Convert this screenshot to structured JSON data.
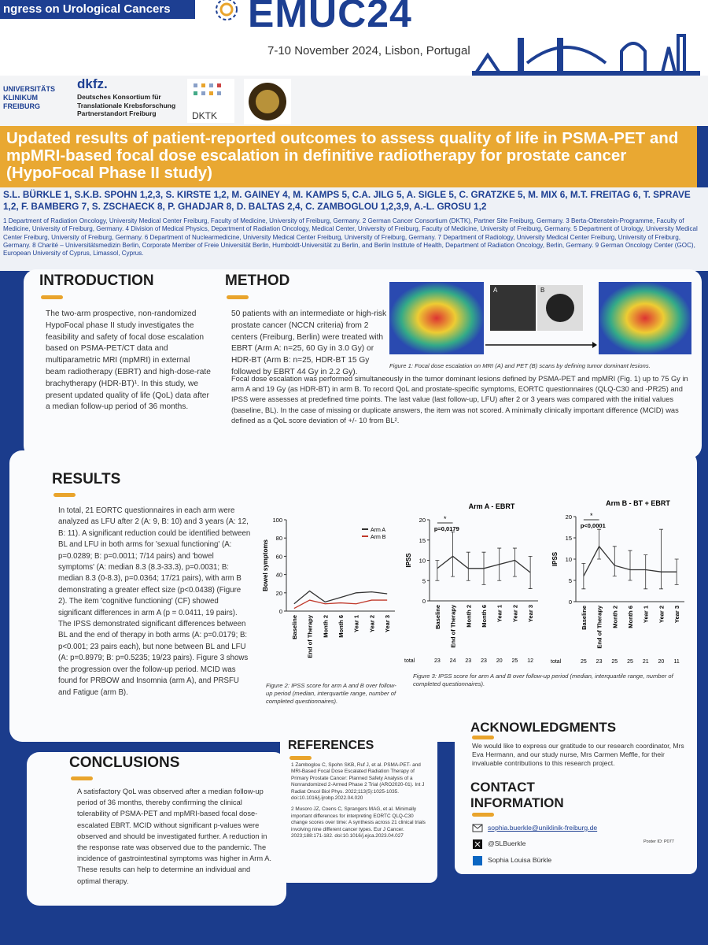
{
  "header": {
    "banner": "ngress on Urological Cancers",
    "event": "EMUC24",
    "date": "7-10 November 2024, Lisbon, Portugal",
    "logo_ukf": "UNIVERSITÄTS KLINIKUM FREIBURG",
    "logo_dkfz": "dkfz.",
    "dkfz_text": "Deutsches Konsortium für Translationale Krebsforschung Partnerstandort Freiburg",
    "dktk": "DKTK"
  },
  "title": "Updated results of patient-reported outcomes to assess quality of life in PSMA-PET and mpMRI-based focal dose escalation in definitive radiotherapy for prostate cancer (HypoFocal Phase II study)",
  "authors": "S.L. BÜRKLE 1, S.K.B. SPOHN 1,2,3, S. KIRSTE 1,2, M. GAINEY 4, M. KAMPS 5, C.A. JILG 5, A. SIGLE 5, C. GRATZKE 5, M. MIX 6, M.T. FREITAG 6, T. SPRAVE 1,2, F. BAMBERG 7, S. ZSCHAECK 8, P. GHADJAR 8, D. BALTAS 2,4, C. ZAMBOGLOU 1,2,3,9, A.-L. GROSU 1,2",
  "affiliations": "1 Department of Radiation Oncology, University Medical Center Freiburg, Faculty of Medicine, University of Freiburg, Germany. 2 German Cancer Consortium (DKTK), Partner Site Freiburg, Germany. 3 Berta-Ottenstein-Programme, Faculty of Medicine, University of Freiburg, Germany. 4 Division of Medical Physics, Department of Radiation Oncology, Medical Center, University of Freiburg, Faculty of Medicine, University of Freiburg, Germany. 5 Department of Urology, University Medical Center Freiburg, University of Freiburg, Germany. 6 Department of Nuclearmedicine, University Medical Center Freiburg, University of Freiburg, Germany. 7 Department of Radiology, University Medical Center Freiburg, University of Freiburg, Germany. 8 Charité – Universitätsmedizin Berlin, Corporate Member of Freie Universität Berlin, Humboldt-Universität zu Berlin, and Berlin Institute of Health, Department of Radiation Oncology, Berlin, Germany. 9 German Oncology Center (GOC), European University of Cyprus, Limassol, Cyprus.",
  "introduction": {
    "heading": "INTRODUCTION",
    "text": "The two-arm prospective, non-randomized HypoFocal phase II study investigates the feasibility and safety of focal dose escalation based on PSMA-PET/CT data and multiparametric MRI (mpMRI) in external beam radiotherapy (EBRT) and high-dose-rate brachytherapy (HDR-BT)¹. In this study, we present updated quality of life (QoL) data after a median follow-up period of 36 months."
  },
  "method": {
    "heading": "METHOD",
    "text1": "50 patients with an intermediate or high-risk prostate cancer (NCCN criteria) from 2 centers (Freiburg, Berlin) were treated with EBRT (Arm A: n=25, 60 Gy in 3.0 Gy) or HDR-BT (Arm B: n=25, HDR-BT 15 Gy followed by EBRT 44 Gy in 2.2 Gy).",
    "text2": "Focal dose escalation was performed simultaneously in the tumor dominant lesions defined by PSMA-PET and mpMRI (Fig. 1) up to 75 Gy in arm A and 19 Gy (as HDR-BT) in arm B. To record QoL and prostate-specific symptoms, EORTC questionnaires (QLQ-C30 and -PR25) and IPSS were assesses at predefined time points. The last value (last follow-up, LFU) after 2 or 3 years was compared with the initial values (baseline, BL). In the case of missing or duplicate answers, the item was not scored. A minimally clinically important difference (MCID) was defined as a QoL score deviation of +/- 10 from BL².",
    "label_a": "A",
    "label_b": "B",
    "figure_caption": "Figure 1: Focal dose escalation on MRI (A) and PET (B) scans by defining tumor dominant lesions."
  },
  "results": {
    "heading": "RESULTS",
    "text": "In total, 21 EORTC questionnaires in each arm were analyzed as LFU after 2 (A: 9, B: 10) and 3 years (A: 12, B: 11). A significant reduction could be identified between BL and LFU in both arms for 'sexual functioning' (A: p=0.0289; B: p=0.0011; 7/14 pairs) and 'bowel symptoms' (A: median 8.3 (8.3-33.3), p=0.0031; B: median 8.3 (0-8.3), p=0.0364; 17/21 pairs), with arm B demonstrating a greater effect size (p<0.0438) (Figure 2). The item 'cognitive functioning' (CF) showed significant differences in arm A (p = 0.0411, 19 pairs). The IPSS demonstrated significant differences between BL and the end of therapy in both arms (A: p=0.0179; B: p<0.001; 23 pairs each), but none between BL and LFU (A: p=0.8979; B: p=0.5235; 19/23 pairs). Figure 3 shows the progression over the follow-up period. MCID was found for PRBOW and Insomnia (arm A), and PRSFU and Fatigue (arm B).",
    "figure2_caption": "Figure 2: IPSS score for arm A and B over follow-up period (median, interquartile range, number of completed questionnaires).",
    "figure3_caption": "Figure 3: IPSS score for arm A and B over follow-up period (median, interquartile range, number of completed questionnaires)."
  },
  "charts": [
    {
      "type": "line",
      "ylabel": "Bowel symptoms",
      "categories": [
        "Baseline",
        "End of Therapy",
        "Month 2",
        "Month 6",
        "Year 1",
        "Year 2",
        "Year 3"
      ],
      "ylim": [
        0,
        100
      ],
      "yticks": [
        0,
        20,
        40,
        60,
        80,
        100
      ],
      "legend": "upper right",
      "series": [
        {
          "name": "Arm A",
          "color": "#333333",
          "values": [
            8,
            22,
            10,
            15,
            20,
            21,
            19
          ]
        },
        {
          "name": "Arm B",
          "color": "#c0392b",
          "values": [
            3,
            12,
            8,
            9,
            8,
            12,
            12
          ]
        }
      ]
    },
    {
      "type": "line",
      "title": "Arm A - EBRT",
      "ylabel": "IPSS",
      "categories": [
        "Baseline",
        "End of Therapy",
        "Month 2",
        "Month 6",
        "Year 1",
        "Year 2",
        "Year 3"
      ],
      "ylim": [
        0,
        20
      ],
      "yticks": [
        0,
        5,
        10,
        15,
        20
      ],
      "annotation_star": "*",
      "annotation_p": "p=0,0179",
      "series": [
        {
          "color": "#333333",
          "values": [
            8,
            11,
            8,
            8,
            9,
            10,
            7
          ],
          "lower": [
            5,
            6,
            5,
            4,
            5,
            6,
            3
          ],
          "upper": [
            10,
            17,
            12,
            12,
            13,
            13,
            11
          ]
        }
      ],
      "totals_label": "total",
      "totals": [
        23,
        24,
        23,
        23,
        20,
        25,
        12
      ]
    },
    {
      "type": "line",
      "title": "Arm B - BT + EBRT",
      "ylabel": "IPSS",
      "categories": [
        "Baseline",
        "End of Therapy",
        "Month 2",
        "Month 6",
        "Year 1",
        "Year 2",
        "Year 3"
      ],
      "ylim": [
        0,
        20
      ],
      "yticks": [
        0,
        5,
        10,
        15,
        20
      ],
      "annotation_star": "*",
      "annotation_p": "p<0,0001",
      "series": [
        {
          "color": "#333333",
          "values": [
            6,
            13,
            8.5,
            7.5,
            7.5,
            7,
            7
          ],
          "lower": [
            3,
            10,
            6,
            5,
            3,
            3,
            4
          ],
          "upper": [
            9,
            17,
            13,
            12,
            11,
            17,
            10
          ]
        }
      ],
      "totals_label": "total",
      "totals": [
        25,
        23,
        25,
        25,
        21,
        20,
        11
      ]
    }
  ],
  "conclusions": {
    "heading": "CONCLUSIONS",
    "text": "A satisfactory QoL was observed after a median follow-up period of 36 months, thereby confirming the clinical tolerability of PSMA-PET and mpMRI-based focal dose-escalated EBRT. MCID without significant p-values were observed and should be investigated further. A reduction in the response rate was observed due to the pandemic. The incidence of gastrointestinal symptoms was higher in Arm A. These results can help to determine an individual and optimal therapy."
  },
  "references": {
    "heading": "REFERENCES",
    "items": [
      "1 Zamboglou C, Spohn SKB, Ruf J, et al. PSMA-PET- and MRI-Based Focal Dose Escalated Radiation Therapy of Primary Prostate Cancer: Planned Safety Analysis of a Nonrandomized 2-Armed Phase 2 Trial (ARO2020-01). Int J Radiat Oncol Biol Phys. 2022;113(5):1025-1035. doi:10.1016/j.ijrobp.2022.04.020",
      "2 Musoro JZ, Coens C, Sprangers MAG, et al. Minimally important differences for interpreting EORTC QLQ-C30 change scores over time: A synthesis across 21 clinical trials involving nine different cancer types. Eur J Cancer. 2023;188:171-182. doi:10.1016/j.ejca.2023.04.027"
    ]
  },
  "acknowledgments": {
    "heading": "ACKNOWLEDGMENTS",
    "text": "We would like to express our gratitude to our research coordinator, Mrs Eva Hermann, and our study nurse, Mrs Carmen Meffle, for their invaluable contributions to this research project."
  },
  "contact": {
    "heading": "CONTACT INFORMATION",
    "email": "sophia.buerkle@uniklinik-freiburg.de",
    "x_handle": "@SLBuerkle",
    "linkedin": "Sophia Louisa Bürkle",
    "poster_id": "Poster ID: P077"
  }
}
